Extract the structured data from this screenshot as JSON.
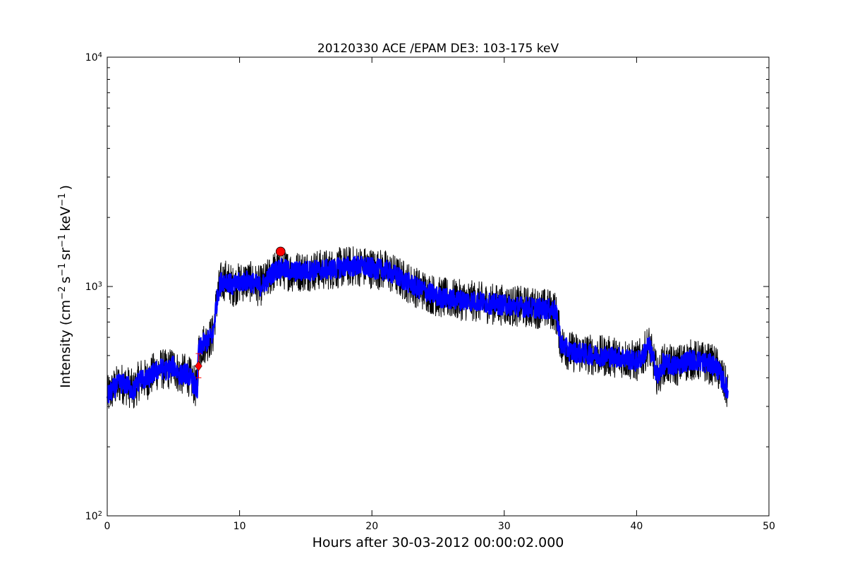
{
  "chart_data": {
    "type": "line",
    "title": "20120330 ACE /EPAM DE3: 103-175 keV",
    "xlabel": "Hours after 30-03-2012 00:00:02.000",
    "ylabel": "Intensity (cm",
    "ylabel_parts": {
      "base": "Intensity (cm",
      "sup1": "−2",
      "s": "s",
      "sup2": "−1",
      "sr": "sr",
      "sup3": "−1",
      "kev": "keV",
      "sup4": "−1",
      "close": ")"
    },
    "xlim": [
      0,
      50
    ],
    "ylim": [
      100,
      10000
    ],
    "yscale": "log",
    "xticks": [
      {
        "value": 0,
        "label": "0"
      },
      {
        "value": 10,
        "label": "10"
      },
      {
        "value": 20,
        "label": "20"
      },
      {
        "value": 30,
        "label": "30"
      },
      {
        "value": 40,
        "label": "40"
      },
      {
        "value": 50,
        "label": "50"
      }
    ],
    "yticks": [
      {
        "value": 100,
        "base": "10",
        "exp": "2"
      },
      {
        "value": 1000,
        "base": "10",
        "exp": "3"
      },
      {
        "value": 10000,
        "base": "10",
        "exp": "4"
      }
    ],
    "series": [
      {
        "color": "#000000",
        "noise": 0.09,
        "x": [
          0,
          0.5,
          1,
          1.5,
          2,
          2.5,
          3,
          3.5,
          4,
          4.5,
          5,
          5.5,
          6,
          6.5,
          6.8,
          6.9,
          7.2,
          7.6,
          8.0,
          8.2,
          8.4,
          8.6,
          9,
          9.5,
          10,
          10.5,
          11,
          11.5,
          12,
          12.5,
          13,
          13.5,
          14,
          15,
          16,
          17,
          18,
          19,
          20,
          21,
          22,
          23,
          23.5,
          24,
          25,
          26,
          27,
          28,
          29,
          30,
          31,
          32,
          33,
          33.8,
          34.0,
          34.3,
          35,
          36,
          37,
          38,
          39,
          40,
          40.5,
          40.9,
          41.3,
          41.6,
          42,
          43,
          44,
          45,
          46,
          46.9
        ],
        "y": [
          330,
          360,
          380,
          370,
          350,
          400,
          390,
          420,
          440,
          430,
          450,
          410,
          420,
          380,
          350,
          520,
          560,
          580,
          620,
          800,
          950,
          1050,
          1070,
          1000,
          1040,
          1060,
          1040,
          1000,
          1050,
          1150,
          1200,
          1180,
          1160,
          1170,
          1180,
          1190,
          1220,
          1230,
          1200,
          1180,
          1100,
          1020,
          980,
          960,
          900,
          880,
          870,
          860,
          840,
          830,
          820,
          810,
          800,
          790,
          720,
          560,
          520,
          510,
          500,
          495,
          490,
          470,
          500,
          560,
          470,
          400,
          460,
          450,
          480,
          470,
          450,
          350
        ]
      },
      {
        "color": "#0000ff",
        "noise": 0.045,
        "x": [
          0,
          0.5,
          1,
          1.5,
          2,
          2.5,
          3,
          3.5,
          4,
          4.5,
          5,
          5.5,
          6,
          6.5,
          6.8,
          6.9,
          7.2,
          7.6,
          8.0,
          8.2,
          8.4,
          8.6,
          9,
          9.5,
          10,
          10.5,
          11,
          11.5,
          12,
          12.5,
          13,
          13.5,
          14,
          15,
          16,
          17,
          18,
          19,
          20,
          21,
          22,
          23,
          23.5,
          24,
          25,
          26,
          27,
          28,
          29,
          30,
          31,
          32,
          33,
          33.8,
          34.0,
          34.3,
          35,
          36,
          37,
          38,
          39,
          40,
          40.5,
          40.9,
          41.3,
          41.6,
          42,
          43,
          44,
          45,
          46,
          46.9
        ],
        "y": [
          330,
          360,
          380,
          370,
          350,
          400,
          390,
          420,
          440,
          430,
          450,
          410,
          420,
          380,
          350,
          520,
          560,
          580,
          620,
          800,
          950,
          1050,
          1070,
          1000,
          1040,
          1060,
          1040,
          1000,
          1050,
          1150,
          1200,
          1180,
          1160,
          1170,
          1180,
          1190,
          1220,
          1230,
          1200,
          1180,
          1100,
          1020,
          980,
          960,
          900,
          880,
          870,
          860,
          840,
          830,
          820,
          810,
          800,
          790,
          720,
          560,
          520,
          510,
          500,
          495,
          490,
          470,
          500,
          560,
          470,
          400,
          460,
          450,
          480,
          470,
          450,
          350
        ]
      }
    ],
    "markers": [
      {
        "x": 6.9,
        "y": 450,
        "color": "#ff0000",
        "shape": "diamond",
        "error_low": 400,
        "error_high": 510
      },
      {
        "x": 13.1,
        "y": 1420,
        "color": "#ff0000",
        "shape": "circle"
      }
    ],
    "grid": false,
    "legend": "none"
  }
}
